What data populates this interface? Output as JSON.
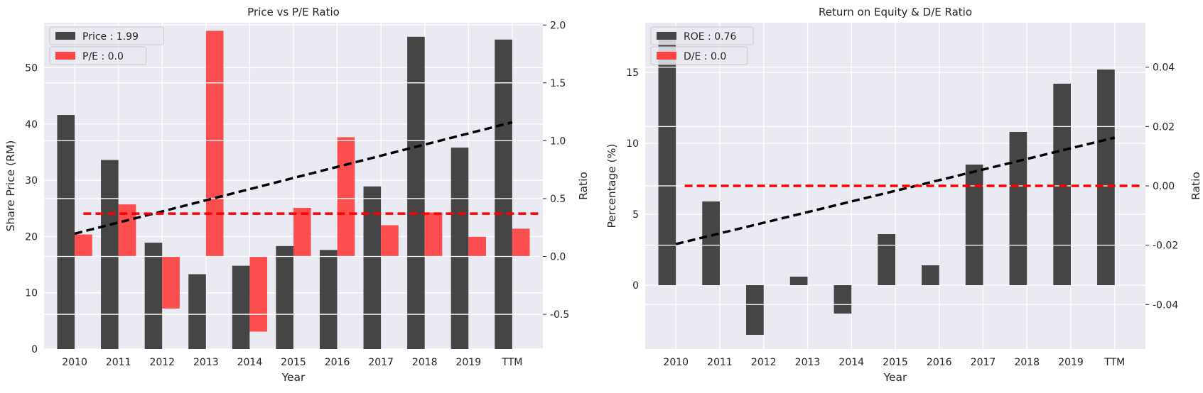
{
  "chart_data": [
    {
      "type": "bar",
      "title": "Price vs P/E Ratio",
      "xlabel": "Year",
      "ylabel": "Share Price (RM)",
      "y2label": "Ratio",
      "categories": [
        "2010",
        "2011",
        "2012",
        "2013",
        "2014",
        "2015",
        "2016",
        "2017",
        "2018",
        "2019",
        "TTM"
      ],
      "ylim": [
        0,
        58
      ],
      "yticks": [
        0,
        10,
        20,
        30,
        40,
        50
      ],
      "y2lim": [
        -0.8,
        2.02
      ],
      "y2ticks": [
        -0.5,
        0.0,
        0.5,
        1.0,
        1.5,
        2.0
      ],
      "grid": true,
      "legend_position": "top-left",
      "series": [
        {
          "name": "Price",
          "legend": "Price : 1.99",
          "axis": "left",
          "color": "#333333",
          "values": [
            41.6,
            33.6,
            18.9,
            13.3,
            14.8,
            18.3,
            17.6,
            28.9,
            55.5,
            35.8,
            55.0
          ]
        },
        {
          "name": "P/E",
          "legend": "P/E : 0.0",
          "axis": "right",
          "color": "#ff3333",
          "values": [
            0.19,
            0.45,
            -0.45,
            1.95,
            -0.65,
            0.42,
            1.03,
            0.27,
            0.38,
            0.17,
            0.24
          ]
        }
      ],
      "lines": [
        {
          "role": "price-trend",
          "color": "#000000",
          "axis": "left",
          "from": [
            0,
            20.5
          ],
          "to": [
            10,
            40.3
          ]
        },
        {
          "role": "pe-mean",
          "color": "#ff0000",
          "axis": "right",
          "from": [
            0.2,
            0.37
          ],
          "to": [
            10.6,
            0.37
          ]
        }
      ]
    },
    {
      "type": "bar",
      "title": "Return on Equity & D/E Ratio",
      "xlabel": "Year",
      "ylabel": "Percentage (%)",
      "y2label": "Ratio",
      "categories": [
        "2010",
        "2011",
        "2012",
        "2013",
        "2014",
        "2015",
        "2016",
        "2017",
        "2018",
        "2019",
        "TTM"
      ],
      "ylim": [
        -4.5,
        18.5
      ],
      "yticks": [
        0,
        5,
        10,
        15
      ],
      "y2lim": [
        -0.055,
        0.055
      ],
      "y2ticks": [
        -0.04,
        -0.02,
        0.0,
        0.02,
        0.04
      ],
      "grid": true,
      "legend_position": "top-left",
      "series": [
        {
          "name": "ROE",
          "legend": "ROE : 0.76",
          "axis": "left",
          "color": "#333333",
          "values": [
            17.6,
            5.9,
            -3.5,
            0.6,
            -2.0,
            3.6,
            1.4,
            8.5,
            10.8,
            14.2,
            15.2
          ]
        },
        {
          "name": "D/E",
          "legend": "D/E : 0.0",
          "axis": "right",
          "color": "#ff3333",
          "values": [
            0,
            0,
            0,
            0,
            0,
            0,
            0,
            0,
            0,
            0,
            0
          ]
        }
      ],
      "lines": [
        {
          "role": "roe-trend",
          "color": "#000000",
          "axis": "left",
          "from": [
            0,
            2.9
          ],
          "to": [
            10,
            10.4
          ]
        },
        {
          "role": "de-mean",
          "color": "#ff0000",
          "axis": "right",
          "from": [
            0.2,
            0.0
          ],
          "to": [
            10.6,
            0.0
          ]
        }
      ]
    }
  ]
}
